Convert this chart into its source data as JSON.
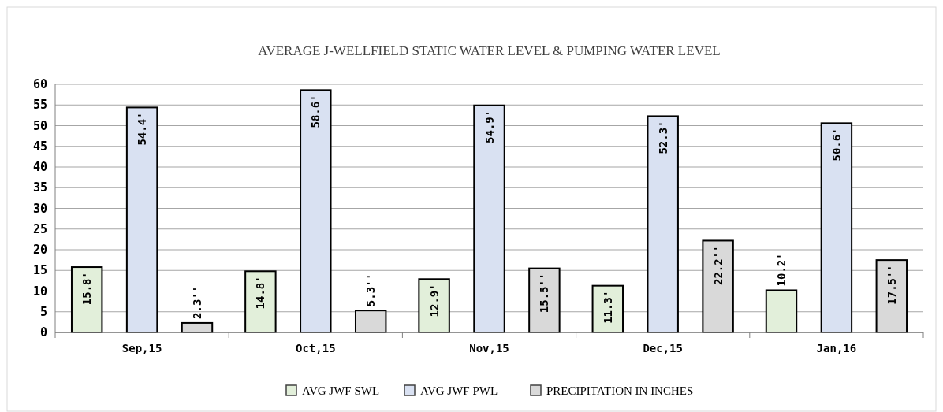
{
  "chart_data": {
    "type": "bar",
    "title": "AVERAGE J-WELLFIELD STATIC WATER LEVEL & PUMPING WATER LEVEL",
    "categories": [
      "Sep,15",
      "Oct,15",
      "Nov,15",
      "Dec,15",
      "Jan,16"
    ],
    "series": [
      {
        "name": "AVG JWF SWL",
        "color": "#e2efda",
        "values": [
          15.8,
          14.8,
          12.9,
          11.3,
          10.2
        ],
        "value_labels": [
          "15.8'",
          "14.8'",
          "12.9'",
          "11.3'",
          "10.2'"
        ]
      },
      {
        "name": "AVG JWF PWL",
        "color": "#d9e1f2",
        "values": [
          54.4,
          58.6,
          54.9,
          52.3,
          50.6
        ],
        "value_labels": [
          "54.4'",
          "58.6'",
          "54.9'",
          "52.3'",
          "50.6'"
        ]
      },
      {
        "name": "PRECIPITATION IN INCHES",
        "color": "#d9d9d9",
        "values": [
          2.3,
          5.3,
          15.5,
          22.2,
          17.5
        ],
        "value_labels": [
          "2.3''",
          "5.3''",
          "15.5''",
          "22.2''",
          "17.5''"
        ]
      }
    ],
    "ylim": [
      0,
      60
    ],
    "yticks": [
      0,
      5,
      10,
      15,
      20,
      25,
      30,
      35,
      40,
      45,
      50,
      55,
      60
    ],
    "grid": "y",
    "legend": "bottom"
  }
}
